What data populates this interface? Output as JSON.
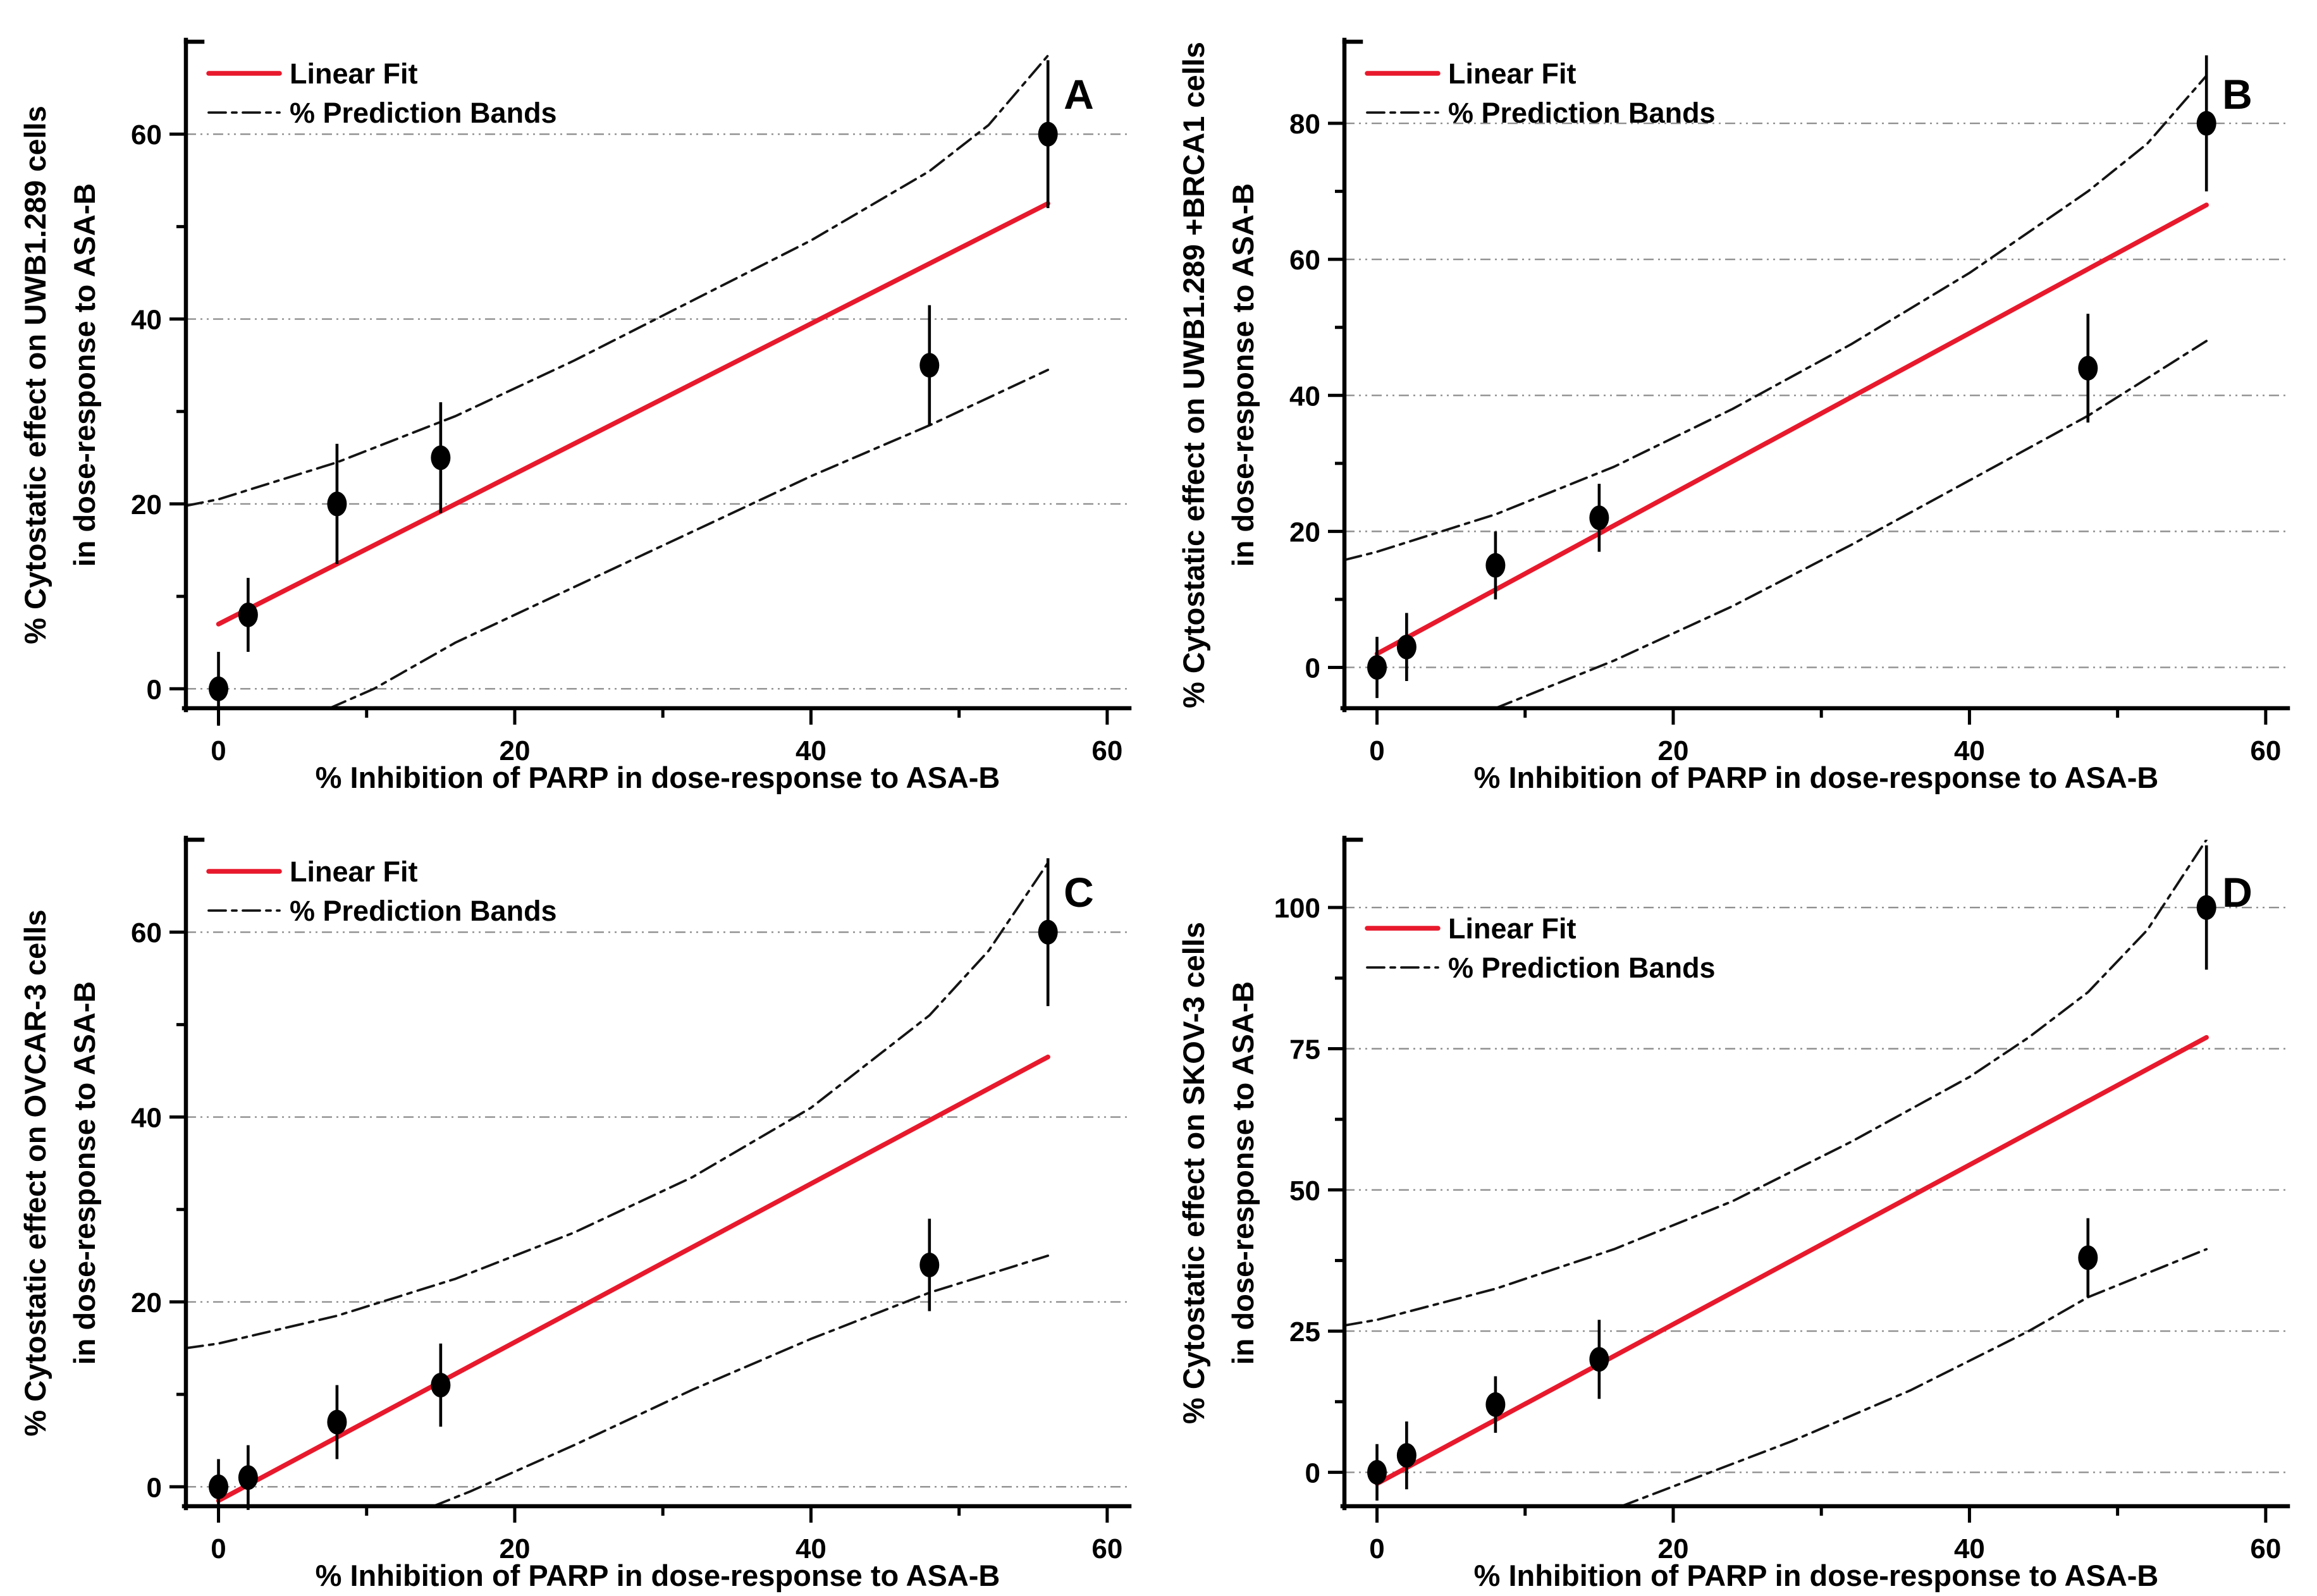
{
  "figure": {
    "background": "#ffffff",
    "legend": {
      "fit_label": "Linear Fit",
      "bands_label": "% Prediction Bands"
    },
    "colors": {
      "fit_line": "#e8192c",
      "band_line": "#141414",
      "marker": "#000000",
      "error_bar": "#000000",
      "grid_line": "#8f8f8f",
      "axis": "#000000",
      "text": "#000000"
    }
  },
  "chart_data": [
    {
      "type": "scatter",
      "panel_label": "A",
      "ylabel": [
        "% Cytostatic effect on UWB1.289 cells",
        "in dose-response to ASA-B"
      ],
      "xlabel": "% Inhibition of PARP in dose-response to ASA-B",
      "xlim": [
        -2.2,
        61.5
      ],
      "ylim": [
        -2.1,
        70
      ],
      "xticks": [
        0,
        20,
        40,
        60
      ],
      "xminorticks": [
        10,
        30,
        50
      ],
      "yticks": [
        0,
        20,
        40,
        60
      ],
      "yminorticks": [
        10,
        30,
        50
      ],
      "grid": "horizontal",
      "legend_position": "top-left-inside",
      "legend_y": 116,
      "series": {
        "points": {
          "x": [
            0,
            2,
            8,
            15,
            48,
            56
          ],
          "y": [
            0,
            8,
            20,
            25,
            35,
            60
          ],
          "yerr": [
            4,
            4,
            6.5,
            6,
            6.5,
            8
          ]
        },
        "linear_fit": [
          [
            0,
            7
          ],
          [
            56,
            52.5
          ]
        ],
        "upper_prediction_band": [
          [
            -2.2,
            19.8
          ],
          [
            0,
            20.5
          ],
          [
            8,
            24.5
          ],
          [
            16,
            29.5
          ],
          [
            24,
            35.5
          ],
          [
            32,
            42
          ],
          [
            40,
            48.5
          ],
          [
            48,
            56
          ],
          [
            52,
            61
          ],
          [
            56,
            68.5
          ]
        ],
        "lower_prediction_band": [
          [
            7.5,
            -2.1
          ],
          [
            10.5,
            0
          ],
          [
            16,
            5
          ],
          [
            24,
            11
          ],
          [
            32,
            17
          ],
          [
            40,
            23
          ],
          [
            48,
            28.5
          ],
          [
            56,
            34.5
          ]
        ]
      }
    },
    {
      "type": "scatter",
      "panel_label": "B",
      "ylabel": [
        "% Cytostatic effect on UWB1.289 +BRCA1 cells",
        "in dose-response to ASA-B"
      ],
      "xlabel": "% Inhibition of PARP in dose-response to ASA-B",
      "xlim": [
        -2.2,
        61.5
      ],
      "ylim": [
        -6,
        92
      ],
      "xticks": [
        0,
        20,
        40,
        60
      ],
      "xminorticks": [
        10,
        30,
        50
      ],
      "yticks": [
        0,
        20,
        40,
        60,
        80
      ],
      "yminorticks": [
        10,
        30,
        50,
        70
      ],
      "grid": "horizontal",
      "legend_position": "top-left-inside",
      "legend_y": 116,
      "series": {
        "points": {
          "x": [
            0,
            2,
            8,
            15,
            48,
            56
          ],
          "y": [
            0,
            3,
            15,
            22,
            44,
            80
          ],
          "yerr": [
            4.5,
            5,
            5,
            5,
            8,
            10
          ]
        },
        "linear_fit": [
          [
            0,
            2
          ],
          [
            56,
            68
          ]
        ],
        "upper_prediction_band": [
          [
            -2.2,
            15.8
          ],
          [
            0,
            17
          ],
          [
            8,
            22.5
          ],
          [
            16,
            29.5
          ],
          [
            24,
            38
          ],
          [
            32,
            47.5
          ],
          [
            40,
            58
          ],
          [
            48,
            70
          ],
          [
            52,
            77
          ],
          [
            56,
            87
          ]
        ],
        "lower_prediction_band": [
          [
            8,
            -6
          ],
          [
            12,
            -2.5
          ],
          [
            16,
            1
          ],
          [
            24,
            9
          ],
          [
            32,
            18
          ],
          [
            40,
            27.5
          ],
          [
            48,
            37
          ],
          [
            56,
            48
          ]
        ]
      }
    },
    {
      "type": "scatter",
      "panel_label": "C",
      "ylabel": [
        "% Cytostatic effect on OVCAR-3 cells",
        "in dose-response to ASA-B"
      ],
      "xlabel": "% Inhibition of PARP in dose-response to ASA-B",
      "xlim": [
        -2.2,
        61.5
      ],
      "ylim": [
        -2.1,
        70
      ],
      "xticks": [
        0,
        20,
        40,
        60
      ],
      "xminorticks": [
        10,
        30,
        50
      ],
      "yticks": [
        0,
        20,
        40,
        60
      ],
      "yminorticks": [
        10,
        30,
        50
      ],
      "grid": "horizontal",
      "legend_position": "top-left-inside",
      "legend_y": 116,
      "series": {
        "points": {
          "x": [
            0,
            2,
            8,
            15,
            48,
            56
          ],
          "y": [
            0,
            1,
            7,
            11,
            24,
            60
          ],
          "yerr": [
            3,
            3.5,
            4,
            4.5,
            5,
            8
          ]
        },
        "linear_fit": [
          [
            0,
            -1.5
          ],
          [
            56,
            46.5
          ]
        ],
        "upper_prediction_band": [
          [
            -2.2,
            15
          ],
          [
            0,
            15.5
          ],
          [
            8,
            18.5
          ],
          [
            16,
            22.5
          ],
          [
            24,
            27.5
          ],
          [
            32,
            33.5
          ],
          [
            40,
            41
          ],
          [
            48,
            51
          ],
          [
            52,
            58
          ],
          [
            56,
            67.5
          ]
        ],
        "lower_prediction_band": [
          [
            14.5,
            -2.1
          ],
          [
            17,
            -0.5
          ],
          [
            24,
            4.5
          ],
          [
            32,
            10.5
          ],
          [
            40,
            16
          ],
          [
            48,
            21
          ],
          [
            56,
            25
          ]
        ]
      }
    },
    {
      "type": "scatter",
      "panel_label": "D",
      "ylabel": [
        "% Cytostatic effect on SKOV-3 cells",
        "in dose-response to ASA-B"
      ],
      "xlabel": "% Inhibition of PARP in dose-response to ASA-B",
      "xlim": [
        -2.2,
        61.5
      ],
      "ylim": [
        -6,
        112
      ],
      "xticks": [
        0,
        20,
        40,
        60
      ],
      "xminorticks": [
        10,
        30,
        50
      ],
      "yticks": [
        0,
        25,
        50,
        75,
        100
      ],
      "yminorticks": [
        12.5,
        37.5,
        62.5,
        87.5
      ],
      "grid": "horizontal",
      "legend_position": "upper-left-below-100",
      "legend_y": 206,
      "series": {
        "points": {
          "x": [
            0,
            2,
            8,
            15,
            48,
            56
          ],
          "y": [
            0,
            3,
            12,
            20,
            38,
            100
          ],
          "yerr": [
            5,
            6,
            5,
            7,
            7,
            11
          ]
        },
        "linear_fit": [
          [
            0,
            -2
          ],
          [
            56,
            77
          ]
        ],
        "upper_prediction_band": [
          [
            -2.2,
            26
          ],
          [
            0,
            27
          ],
          [
            8,
            32.5
          ],
          [
            16,
            39.5
          ],
          [
            24,
            48
          ],
          [
            32,
            58.5
          ],
          [
            40,
            70
          ],
          [
            44,
            77
          ],
          [
            48,
            85
          ],
          [
            52,
            96
          ],
          [
            55,
            108
          ],
          [
            56,
            112
          ]
        ],
        "lower_prediction_band": [
          [
            16.5,
            -6
          ],
          [
            20,
            -2.5
          ],
          [
            28,
            5.5
          ],
          [
            36,
            14.5
          ],
          [
            44,
            25
          ],
          [
            48,
            31
          ],
          [
            56,
            39.5
          ]
        ]
      }
    }
  ]
}
